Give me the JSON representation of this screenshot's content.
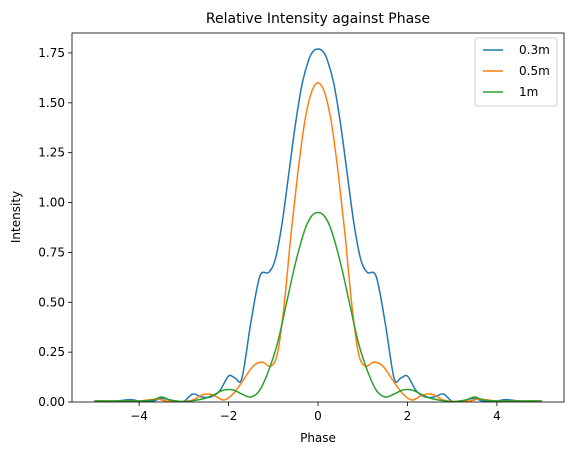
{
  "chart_data": {
    "type": "line",
    "title": "Relative Intensity against Phase",
    "xlabel": "Phase",
    "ylabel": "Intensity",
    "xlim": [
      -5.5,
      5.5
    ],
    "ylim": [
      0,
      1.85
    ],
    "xticks": [
      -4,
      -2,
      0,
      2,
      4
    ],
    "xtick_labels": [
      "−4",
      "−2",
      "0",
      "2",
      "4"
    ],
    "yticks": [
      0,
      0.25,
      0.5,
      0.75,
      1.0,
      1.25,
      1.5,
      1.75
    ],
    "ytick_labels": [
      "0.00",
      "0.25",
      "0.50",
      "0.75",
      "1.00",
      "1.25",
      "1.50",
      "1.75"
    ],
    "grid": false,
    "legend_position": "top-right",
    "series": [
      {
        "name": "0.3m",
        "color": "#1f77b4",
        "x": [
          -5.0,
          -4.5,
          -4.2,
          -4.0,
          -3.7,
          -3.5,
          -3.2,
          -3.0,
          -2.8,
          -2.6,
          -2.4,
          -2.2,
          -2.0,
          -1.85,
          -1.7,
          -1.5,
          -1.3,
          -1.1,
          -0.95,
          -0.8,
          -0.65,
          -0.5,
          -0.35,
          -0.2,
          -0.1,
          0.0,
          0.1,
          0.2,
          0.35,
          0.5,
          0.65,
          0.8,
          0.95,
          1.1,
          1.3,
          1.5,
          1.7,
          1.85,
          2.0,
          2.2,
          2.4,
          2.6,
          2.8,
          3.0,
          3.2,
          3.5,
          3.7,
          4.0,
          4.2,
          4.5,
          5.0
        ],
        "y": [
          0.005,
          0.005,
          0.012,
          0.005,
          0.003,
          0.018,
          0.005,
          0.003,
          0.04,
          0.025,
          0.025,
          0.055,
          0.13,
          0.12,
          0.12,
          0.4,
          0.63,
          0.65,
          0.72,
          0.9,
          1.15,
          1.4,
          1.6,
          1.72,
          1.76,
          1.77,
          1.76,
          1.72,
          1.6,
          1.4,
          1.15,
          0.9,
          0.72,
          0.65,
          0.63,
          0.4,
          0.12,
          0.12,
          0.13,
          0.055,
          0.025,
          0.025,
          0.04,
          0.003,
          0.005,
          0.018,
          0.003,
          0.005,
          0.012,
          0.005,
          0.005
        ]
      },
      {
        "name": "0.5m",
        "color": "#ff7f0e",
        "x": [
          -5.0,
          -4.5,
          -4.0,
          -3.6,
          -3.4,
          -3.0,
          -2.8,
          -2.6,
          -2.45,
          -2.3,
          -2.1,
          -1.9,
          -1.7,
          -1.45,
          -1.25,
          -1.05,
          -0.9,
          -0.75,
          -0.6,
          -0.45,
          -0.3,
          -0.15,
          0.0,
          0.15,
          0.3,
          0.45,
          0.6,
          0.75,
          0.9,
          1.05,
          1.25,
          1.45,
          1.7,
          1.9,
          2.1,
          2.3,
          2.45,
          2.6,
          2.8,
          3.0,
          3.4,
          3.6,
          4.0,
          4.5,
          5.0
        ],
        "y": [
          0.005,
          0.005,
          0.005,
          0.015,
          0.005,
          0.003,
          0.01,
          0.035,
          0.04,
          0.03,
          0.01,
          0.04,
          0.1,
          0.18,
          0.2,
          0.18,
          0.25,
          0.5,
          0.85,
          1.15,
          1.4,
          1.55,
          1.6,
          1.55,
          1.4,
          1.15,
          0.85,
          0.5,
          0.25,
          0.18,
          0.2,
          0.18,
          0.1,
          0.04,
          0.01,
          0.03,
          0.04,
          0.035,
          0.01,
          0.003,
          0.005,
          0.015,
          0.005,
          0.005,
          0.005
        ]
      },
      {
        "name": "1m",
        "color": "#2ca02c",
        "x": [
          -5.0,
          -4.5,
          -4.0,
          -3.7,
          -3.5,
          -3.3,
          -3.0,
          -2.7,
          -2.5,
          -2.3,
          -2.1,
          -1.9,
          -1.7,
          -1.5,
          -1.3,
          -1.1,
          -0.9,
          -0.7,
          -0.5,
          -0.3,
          -0.15,
          0.0,
          0.15,
          0.3,
          0.5,
          0.7,
          0.9,
          1.1,
          1.3,
          1.5,
          1.7,
          1.9,
          2.1,
          2.3,
          2.5,
          2.7,
          3.0,
          3.3,
          3.5,
          3.7,
          4.0,
          4.5,
          5.0
        ],
        "y": [
          0.005,
          0.005,
          0.005,
          0.01,
          0.025,
          0.01,
          0.002,
          0.01,
          0.02,
          0.04,
          0.06,
          0.06,
          0.04,
          0.025,
          0.06,
          0.16,
          0.3,
          0.5,
          0.7,
          0.86,
          0.93,
          0.95,
          0.93,
          0.86,
          0.7,
          0.5,
          0.3,
          0.16,
          0.06,
          0.025,
          0.04,
          0.06,
          0.06,
          0.04,
          0.02,
          0.01,
          0.002,
          0.01,
          0.025,
          0.01,
          0.005,
          0.005,
          0.005
        ]
      }
    ]
  }
}
